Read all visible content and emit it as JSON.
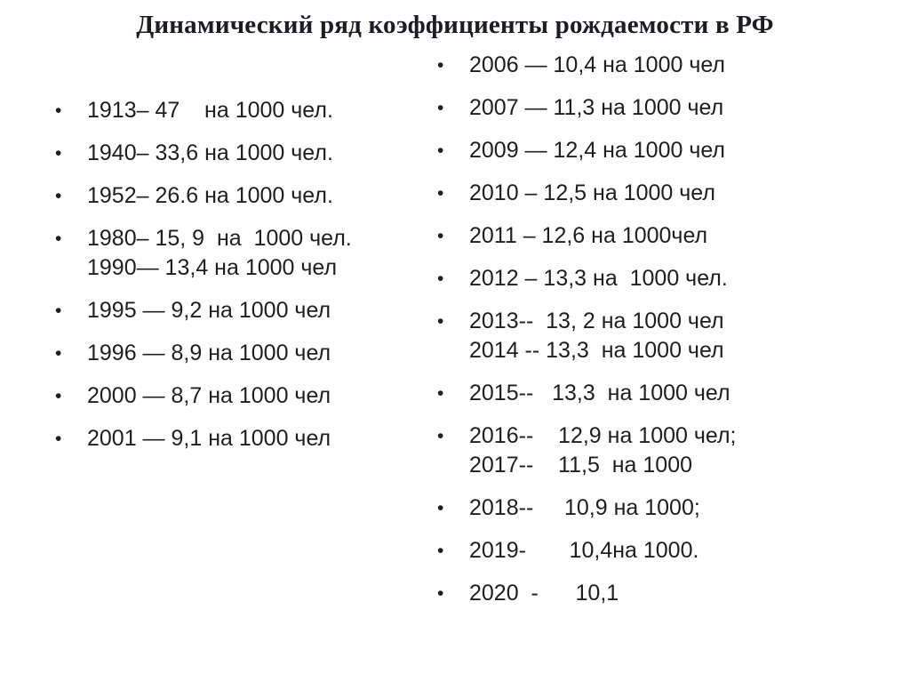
{
  "slide": {
    "title": "Динамический ряд коэффициенты рождаемости в РФ",
    "bullet": "•",
    "colors": {
      "background": "#ffffff",
      "text": "#1f1f1f"
    },
    "left_items": [
      "1913– 47    на 1000 чел.",
      "1940– 33,6 на 1000 чел.",
      "1952– 26.6 на 1000 чел.",
      "1980– 15, 9  на  1000 чел.\n1990— 13,4 на 1000 чел",
      "1995 — 9,2 на 1000 чел",
      "1996 — 8,9 на 1000 чел",
      "2000 — 8,7 на 1000 чел",
      "2001 — 9,1 на 1000 чел"
    ],
    "right_items": [
      "2006 — 10,4 на 1000 чел",
      "2007 — 11,3 на 1000 чел",
      "2009 — 12,4 на 1000 чел",
      "2010 – 12,5 на 1000 чел",
      "2011 – 12,6 на 1000чел",
      "2012 – 13,3 на  1000 чел.",
      "2013--  13, 2 на 1000 чел\n2014 -- 13,3  на 1000 чел",
      "2015--   13,3  на 1000 чел",
      "2016--    12,9 на 1000 чел;\n2017--    11,5  на 1000",
      "2018--     10,9 на 1000;",
      "2019-       10,4на 1000.",
      "2020  -      10,1"
    ]
  }
}
